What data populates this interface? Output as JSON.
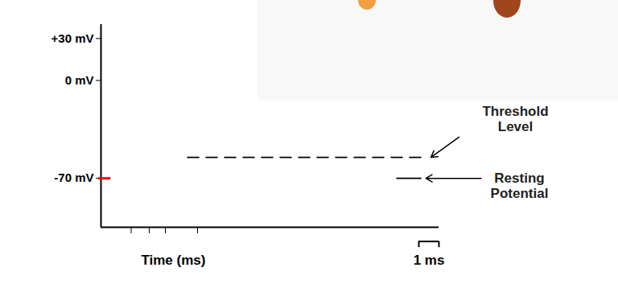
{
  "chart_data": {
    "type": "line",
    "x_label": "Time (ms)",
    "xlim": [
      0,
      16.8
    ],
    "xticks": [
      1.5,
      2.4,
      3.2,
      4.8
    ],
    "ylim": [
      -105,
      40
    ],
    "yticks": [
      {
        "value": 30,
        "label": "+30 mV"
      },
      {
        "value": 0,
        "label": "0 mV"
      },
      {
        "value": -70,
        "label": "-70 mV"
      }
    ],
    "tick_labels": "y",
    "grid": false,
    "series": [
      {
        "name": "Threshold Level",
        "color": "#000000",
        "line_style": "dashed",
        "x": [
          4.3,
          15.9
        ],
        "values": [
          -55,
          -55
        ]
      },
      {
        "name": "Resting Potential",
        "color": "#000000",
        "line_style": "solid",
        "x": [
          14.7,
          15.9
        ],
        "values": [
          -70,
          -70
        ]
      }
    ],
    "scale_bar": {
      "label": "1 ms",
      "x": [
        15.8,
        16.8
      ]
    }
  }
}
